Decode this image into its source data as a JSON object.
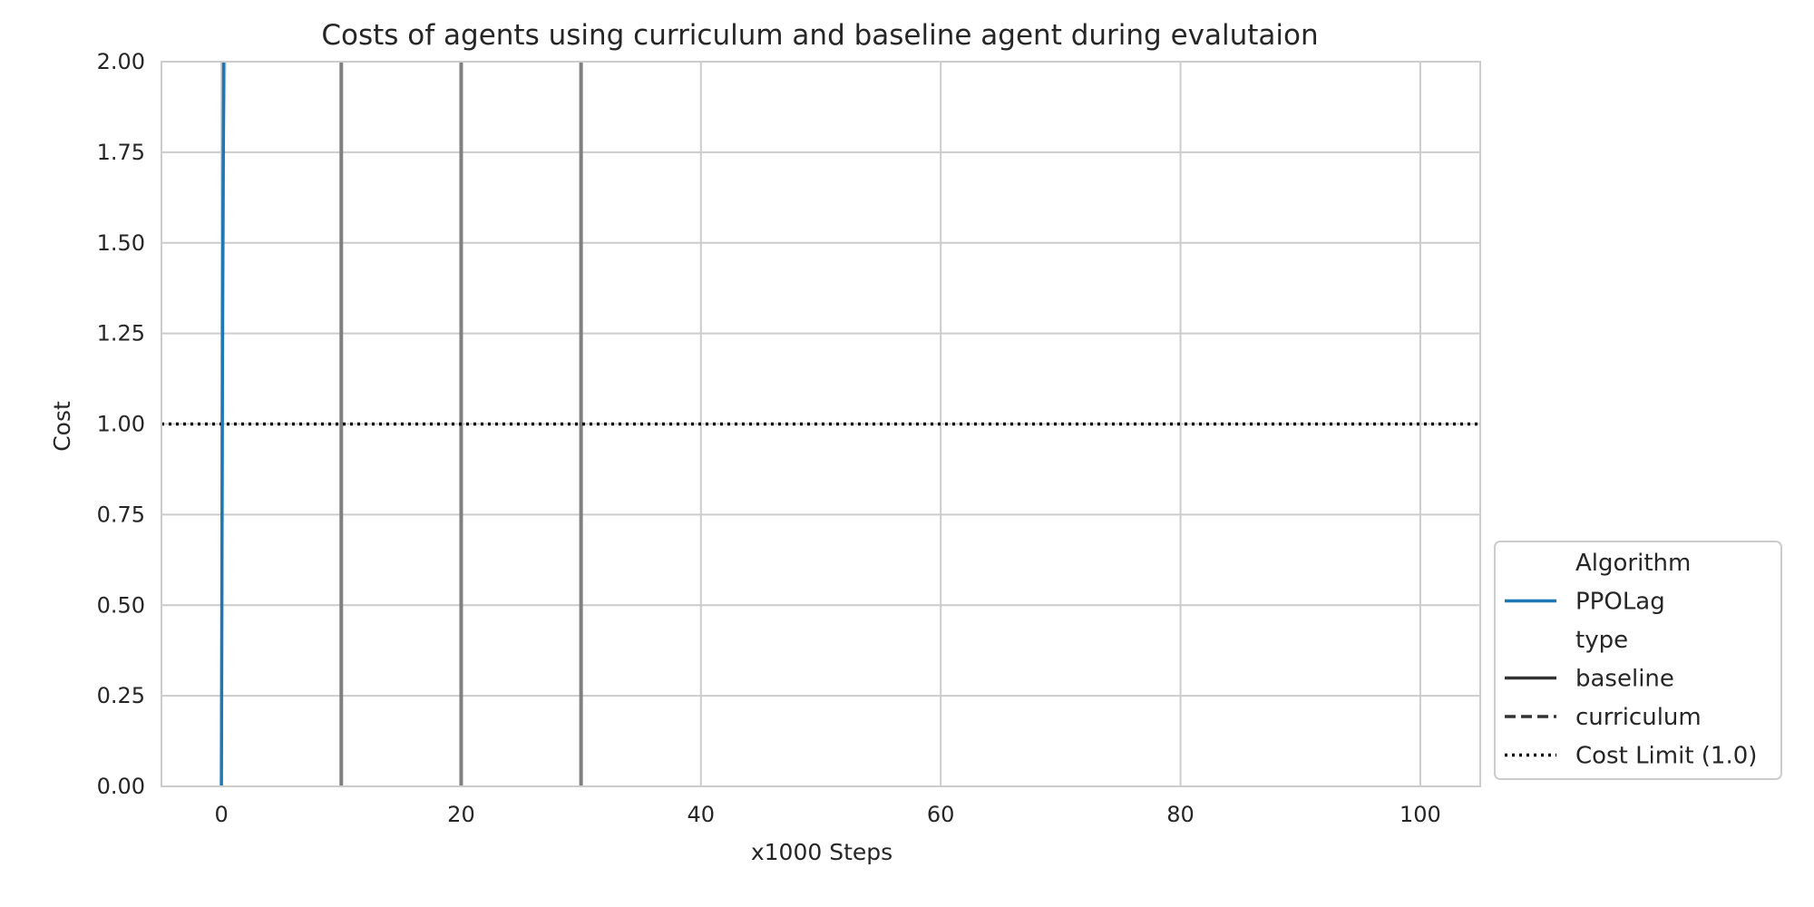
{
  "chart_data": {
    "type": "line",
    "title": "Costs of agents using curriculum and baseline agent during evalutaion",
    "xlabel": "x1000 Steps",
    "ylabel": "Cost",
    "xlim": [
      -5,
      105
    ],
    "ylim": [
      0,
      2
    ],
    "x_ticks": [
      0,
      20,
      40,
      60,
      80,
      100
    ],
    "x_tick_labels": [
      "0",
      "20",
      "40",
      "60",
      "80",
      "100"
    ],
    "y_ticks": [
      0,
      0.25,
      0.5,
      0.75,
      1.0,
      1.25,
      1.5,
      1.75,
      2.0
    ],
    "y_tick_labels": [
      "0.00",
      "0.25",
      "0.50",
      "0.75",
      "1.00",
      "1.25",
      "1.50",
      "1.75",
      "2.00"
    ],
    "grid": true,
    "series": [
      {
        "name": "PPOLag",
        "type_label": "baseline",
        "color": "#1f77b4",
        "x": [
          0,
          0.1,
          0.2,
          0.3
        ],
        "y": [
          0,
          1.3,
          2.05,
          2.2
        ],
        "band_upper": [
          0.05,
          1.6,
          2.2,
          2.3
        ],
        "band_lower": [
          0,
          1.0,
          1.8,
          2.0
        ]
      }
    ],
    "vertical_lines": {
      "x": [
        10,
        20,
        30
      ],
      "color": "#808080"
    },
    "reference_line": {
      "name": "Cost Limit (1.0)",
      "y": 1.0,
      "color": "#000000",
      "style": "dotted"
    },
    "legend": {
      "placement": "outside-lower-right",
      "entries": [
        {
          "label": "Algorithm",
          "style": "none"
        },
        {
          "label": "PPOLag",
          "style": "solid",
          "color": "#1f77b4"
        },
        {
          "label": "type",
          "style": "none"
        },
        {
          "label": "baseline",
          "style": "solid",
          "color": "#333333"
        },
        {
          "label": "curriculum",
          "style": "dashed",
          "color": "#333333"
        },
        {
          "label": "Cost Limit (1.0)",
          "style": "dotted",
          "color": "#000000"
        }
      ]
    }
  }
}
